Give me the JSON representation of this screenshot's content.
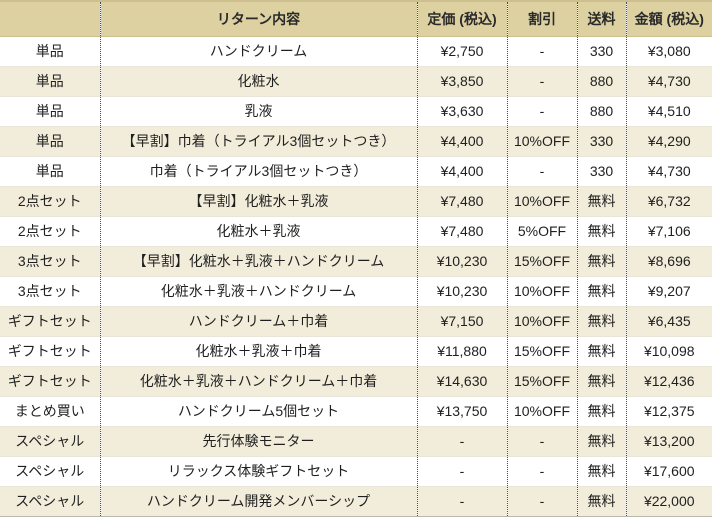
{
  "colors": {
    "header_bg": "#ddd1a2",
    "row_cream_bg": "#f2edda",
    "row_white_bg": "#ffffff",
    "text": "#1f1f1f",
    "dotted_separator": "#4a4a4a"
  },
  "table": {
    "headers": [
      "",
      "リターン内容",
      "定価 (税込)",
      "割引",
      "送料",
      "金額 (税込)"
    ],
    "rows": [
      {
        "category": "単品",
        "content": "ハンドクリーム",
        "price": "¥2,750",
        "discount": "-",
        "shipping": "330",
        "amount": "¥3,080"
      },
      {
        "category": "単品",
        "content": "化粧水",
        "price": "¥3,850",
        "discount": "-",
        "shipping": "880",
        "amount": "¥4,730"
      },
      {
        "category": "単品",
        "content": "乳液",
        "price": "¥3,630",
        "discount": "-",
        "shipping": "880",
        "amount": "¥4,510"
      },
      {
        "category": "単品",
        "content": "【早割】巾着（トライアル3個セットつき）",
        "price": "¥4,400",
        "discount": "10%OFF",
        "shipping": "330",
        "amount": "¥4,290"
      },
      {
        "category": "単品",
        "content": "巾着（トライアル3個セットつき）",
        "price": "¥4,400",
        "discount": "-",
        "shipping": "330",
        "amount": "¥4,730"
      },
      {
        "category": "2点セット",
        "content": "【早割】化粧水＋乳液",
        "price": "¥7,480",
        "discount": "10%OFF",
        "shipping": "無料",
        "amount": "¥6,732"
      },
      {
        "category": "2点セット",
        "content": "化粧水＋乳液",
        "price": "¥7,480",
        "discount": "5%OFF",
        "shipping": "無料",
        "amount": "¥7,106"
      },
      {
        "category": "3点セット",
        "content": "【早割】化粧水＋乳液＋ハンドクリーム",
        "price": "¥10,230",
        "discount": "15%OFF",
        "shipping": "無料",
        "amount": "¥8,696"
      },
      {
        "category": "3点セット",
        "content": "化粧水＋乳液＋ハンドクリーム",
        "price": "¥10,230",
        "discount": "10%OFF",
        "shipping": "無料",
        "amount": "¥9,207"
      },
      {
        "category": "ギフトセット",
        "content": "ハンドクリーム＋巾着",
        "price": "¥7,150",
        "discount": "10%OFF",
        "shipping": "無料",
        "amount": "¥6,435"
      },
      {
        "category": "ギフトセット",
        "content": "化粧水＋乳液＋巾着",
        "price": "¥11,880",
        "discount": "15%OFF",
        "shipping": "無料",
        "amount": "¥10,098"
      },
      {
        "category": "ギフトセット",
        "content": "化粧水＋乳液＋ハンドクリーム＋巾着",
        "price": "¥14,630",
        "discount": "15%OFF",
        "shipping": "無料",
        "amount": "¥12,436"
      },
      {
        "category": "まとめ買い",
        "content": "ハンドクリーム5個セット",
        "price": "¥13,750",
        "discount": "10%OFF",
        "shipping": "無料",
        "amount": "¥12,375"
      },
      {
        "category": "スペシャル",
        "content": "先行体験モニター",
        "price": "-",
        "discount": "-",
        "shipping": "無料",
        "amount": "¥13,200"
      },
      {
        "category": "スペシャル",
        "content": "リラックス体験ギフトセット",
        "price": "-",
        "discount": "-",
        "shipping": "無料",
        "amount": "¥17,600"
      },
      {
        "category": "スペシャル",
        "content": "ハンドクリーム開発メンバーシップ",
        "price": "-",
        "discount": "-",
        "shipping": "無料",
        "amount": "¥22,000"
      }
    ]
  }
}
